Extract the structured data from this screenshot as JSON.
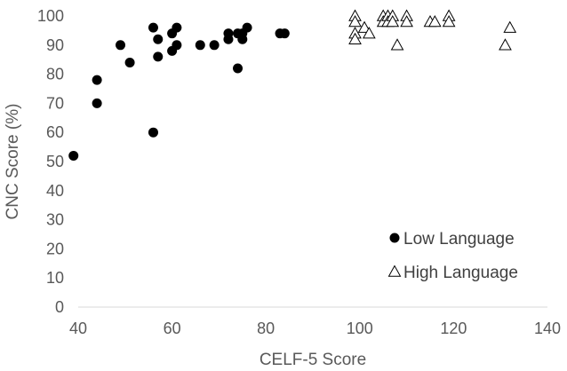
{
  "chart_data": {
    "type": "scatter",
    "title": "",
    "xlabel": "CELF-5 Score",
    "ylabel": "CNC Score (%)",
    "xlim": [
      40,
      140
    ],
    "ylim": [
      0,
      100
    ],
    "xticks": [
      40,
      60,
      80,
      100,
      120,
      140
    ],
    "yticks": [
      0,
      10,
      20,
      30,
      40,
      50,
      60,
      70,
      80,
      90,
      100
    ],
    "grid": false,
    "legend_position": "bottom-right",
    "series": [
      {
        "name": "Low Language",
        "marker": "filled-circle",
        "color": "#000000",
        "points": [
          [
            39,
            52
          ],
          [
            44,
            78
          ],
          [
            44,
            70
          ],
          [
            49,
            90
          ],
          [
            51,
            84
          ],
          [
            56,
            96
          ],
          [
            56,
            60
          ],
          [
            57,
            92
          ],
          [
            57,
            86
          ],
          [
            60,
            94
          ],
          [
            60,
            88
          ],
          [
            61,
            96
          ],
          [
            61,
            90
          ],
          [
            66,
            90
          ],
          [
            69,
            90
          ],
          [
            72,
            94
          ],
          [
            72,
            92
          ],
          [
            74,
            94
          ],
          [
            74,
            82
          ],
          [
            75,
            94
          ],
          [
            75,
            92
          ],
          [
            76,
            96
          ],
          [
            83,
            94
          ],
          [
            84,
            94
          ]
        ]
      },
      {
        "name": "High Language",
        "marker": "open-triangle",
        "color": "#000000",
        "points": [
          [
            99,
            100
          ],
          [
            99,
            98
          ],
          [
            99,
            94
          ],
          [
            99,
            92
          ],
          [
            101,
            96
          ],
          [
            102,
            94
          ],
          [
            105,
            100
          ],
          [
            105,
            98
          ],
          [
            106,
            100
          ],
          [
            106,
            98
          ],
          [
            107,
            100
          ],
          [
            107,
            98
          ],
          [
            108,
            90
          ],
          [
            110,
            100
          ],
          [
            110,
            98
          ],
          [
            115,
            98
          ],
          [
            116,
            98
          ],
          [
            119,
            100
          ],
          [
            119,
            98
          ],
          [
            131,
            90
          ],
          [
            132,
            96
          ]
        ]
      }
    ]
  }
}
